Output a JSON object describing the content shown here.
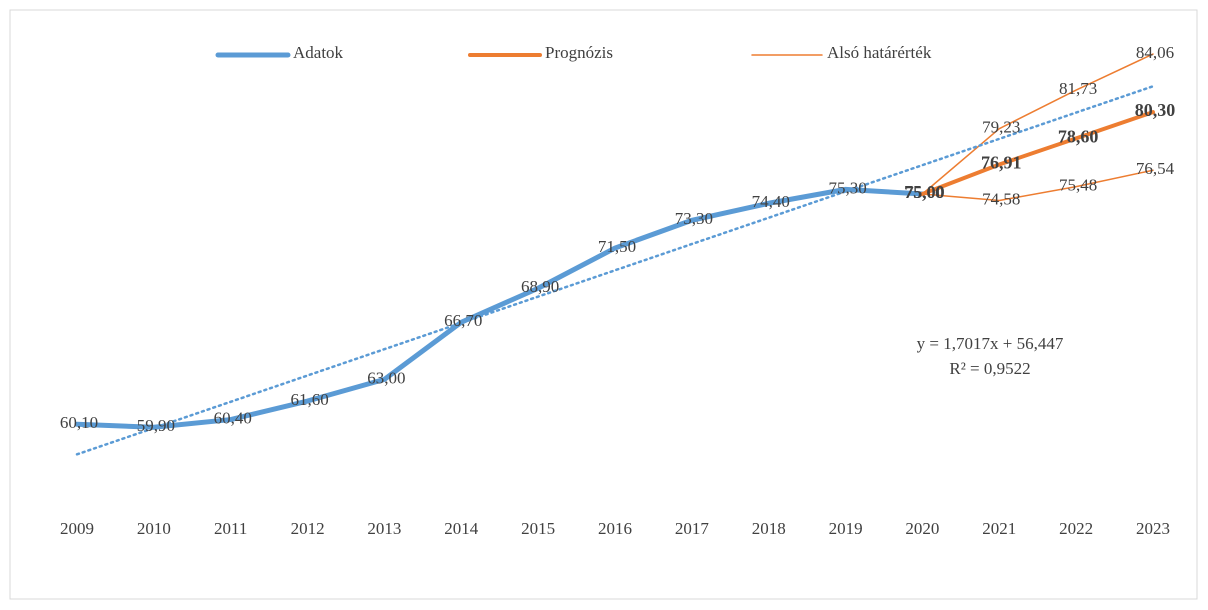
{
  "chart_data": {
    "type": "line",
    "categories": [
      "2009",
      "2010",
      "2011",
      "2012",
      "2013",
      "2014",
      "2015",
      "2016",
      "2017",
      "2018",
      "2019",
      "2020",
      "2021",
      "2022",
      "2023"
    ],
    "ylim": [
      55,
      85
    ],
    "legend": "top",
    "series": [
      {
        "name": "Adatok",
        "color": "#5b9bd5",
        "width": 5,
        "bold": false,
        "values": [
          60.1,
          59.9,
          60.4,
          61.6,
          63.0,
          66.7,
          68.9,
          71.5,
          73.3,
          74.4,
          75.3,
          75.0,
          null,
          null,
          null
        ],
        "value_labels": [
          "60,10",
          "59,90",
          "60,40",
          "61,60",
          "63,00",
          "66,70",
          "68,90",
          "71,50",
          "73,30",
          "74,40",
          "75,30",
          "75,00",
          null,
          null,
          null
        ]
      },
      {
        "name": "Prognózis",
        "color": "#ed7d31",
        "width": 4,
        "bold": true,
        "values": [
          null,
          null,
          null,
          null,
          null,
          null,
          null,
          null,
          null,
          null,
          null,
          75.0,
          76.91,
          78.6,
          80.3
        ],
        "value_labels": [
          null,
          null,
          null,
          null,
          null,
          null,
          null,
          null,
          null,
          null,
          null,
          "75,00",
          "76,91",
          "78,60",
          "80,30"
        ]
      },
      {
        "name": "Alsó határérték",
        "color": "#ed7d31",
        "width": 1.5,
        "bold": false,
        "values": [
          null,
          null,
          null,
          null,
          null,
          null,
          null,
          null,
          null,
          null,
          null,
          75.0,
          74.58,
          75.48,
          76.54
        ],
        "value_labels": [
          null,
          null,
          null,
          null,
          null,
          null,
          null,
          null,
          null,
          null,
          null,
          null,
          "74,58",
          "75,48",
          "76,54"
        ]
      },
      {
        "color": "#ed7d31",
        "width": 1.5,
        "bold": false,
        "values": [
          null,
          null,
          null,
          null,
          null,
          null,
          null,
          null,
          null,
          null,
          null,
          75.0,
          79.23,
          81.73,
          84.06
        ],
        "value_labels": [
          null,
          null,
          null,
          null,
          null,
          null,
          null,
          null,
          null,
          null,
          null,
          null,
          "79,23",
          "81,73",
          "84,06"
        ]
      }
    ],
    "trendline": {
      "color": "#5b9bd5",
      "slope": 1.7017,
      "intercept": 56.447,
      "equation": "y = 1,7017x + 56,447",
      "r_squared": "R² = 0,9522"
    }
  }
}
